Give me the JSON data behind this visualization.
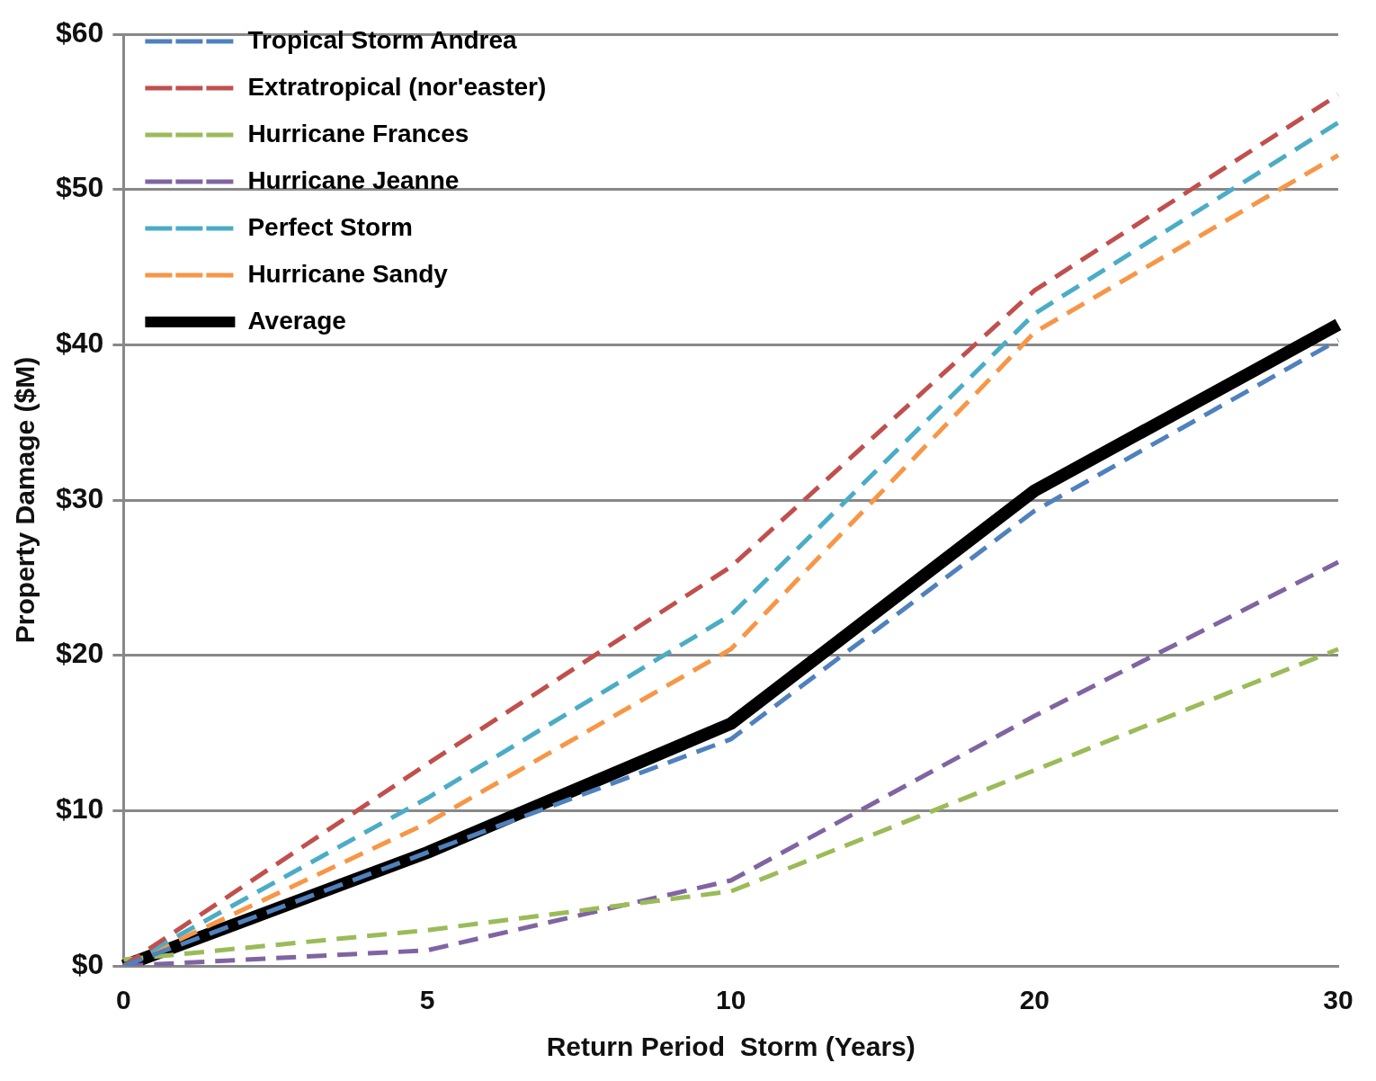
{
  "chart_data": {
    "type": "line",
    "xlabel": "Return Period  Storm (Years)",
    "ylabel": "Property Damage ($M)",
    "categories": [
      "0",
      "5",
      "10",
      "20",
      "30"
    ],
    "ylim": [
      0,
      60
    ],
    "yticks": [
      {
        "value": 0,
        "label": "$0"
      },
      {
        "value": 10,
        "label": "$10"
      },
      {
        "value": 20,
        "label": "$20"
      },
      {
        "value": 30,
        "label": "$30"
      },
      {
        "value": 40,
        "label": "$40"
      },
      {
        "value": 50,
        "label": "$50"
      },
      {
        "value": 60,
        "label": "$60"
      }
    ],
    "grid": "y",
    "legend": "top left",
    "marker": "none",
    "series": [
      {
        "name": "Tropical Storm Andrea",
        "color": "#4f81bd",
        "line_style": "dashed",
        "values": [
          0,
          7.3,
          14.6,
          29.3,
          40.3
        ]
      },
      {
        "name": "Extratropical (nor'easter)",
        "color": "#c0504d",
        "line_style": "dashed",
        "values": [
          0,
          13,
          25.7,
          43.5,
          56.1
        ]
      },
      {
        "name": "Hurricane Frances",
        "color": "#9bbb59",
        "line_style": "dashed",
        "values": [
          0.4,
          2.3,
          4.8,
          12.6,
          20.4
        ]
      },
      {
        "name": "Hurricane Jeanne",
        "color": "#8064a2",
        "line_style": "dashed",
        "values": [
          0,
          1,
          5.5,
          16.1,
          26
        ]
      },
      {
        "name": "Perfect Storm",
        "color": "#4bacc6",
        "line_style": "dashed",
        "values": [
          0,
          10.8,
          22.6,
          42,
          54.3
        ]
      },
      {
        "name": "Hurricane Sandy",
        "color": "#f79646",
        "line_style": "dashed",
        "values": [
          0,
          9.2,
          20.4,
          40.8,
          52.2
        ]
      },
      {
        "name": "Average",
        "color": "#000000",
        "line_style": "solid",
        "values": [
          0,
          7.3,
          15.6,
          30.6,
          41.3
        ]
      }
    ]
  }
}
